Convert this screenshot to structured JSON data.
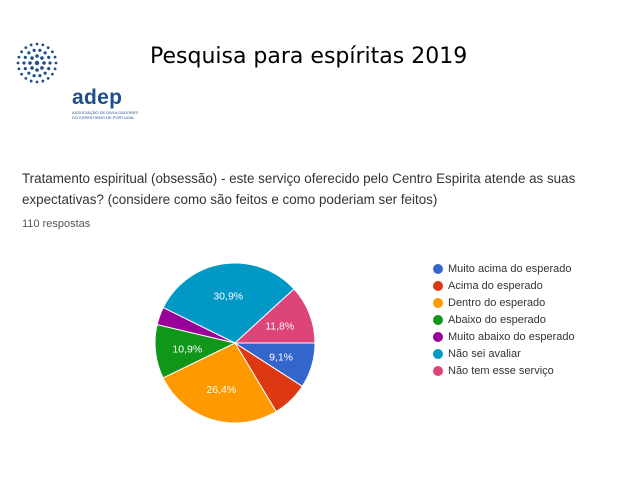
{
  "logo": {
    "name": "adep",
    "subtitle": "ASSOCIAÇÃO DE DIVULGADORES DO ESPIRITISMO DE PORTUGAL"
  },
  "slide_title": "Pesquisa para espíritas  2019",
  "question": "Tratamento espiritual (obsessão) - este serviço oferecido pelo Centro Espirita atende as suas expectativas? (considere como são feitos e como poderiam ser feitos)",
  "responses": "110 respostas",
  "chart_data": {
    "type": "pie",
    "title": "",
    "legend_position": "right",
    "slices": [
      {
        "label": "Muito acima do esperado",
        "value": 9.1,
        "color": "#3366cc",
        "data_label": "9,1%"
      },
      {
        "label": "Acima do esperado",
        "value": 7.3,
        "color": "#dc3912",
        "data_label": ""
      },
      {
        "label": "Dentro do esperado",
        "value": 26.4,
        "color": "#ff9900",
        "data_label": "26,4%"
      },
      {
        "label": "Abaixo do esperado",
        "value": 10.9,
        "color": "#109618",
        "data_label": "10,9%"
      },
      {
        "label": "Muito abaixo do esperado",
        "value": 3.6,
        "color": "#990099",
        "data_label": ""
      },
      {
        "label": "Não sei avaliar",
        "value": 30.9,
        "color": "#0099c6",
        "data_label": "30,9%"
      },
      {
        "label": "Não tem esse serviço",
        "value": 11.8,
        "color": "#dd4477",
        "data_label": "11,8%"
      }
    ]
  }
}
